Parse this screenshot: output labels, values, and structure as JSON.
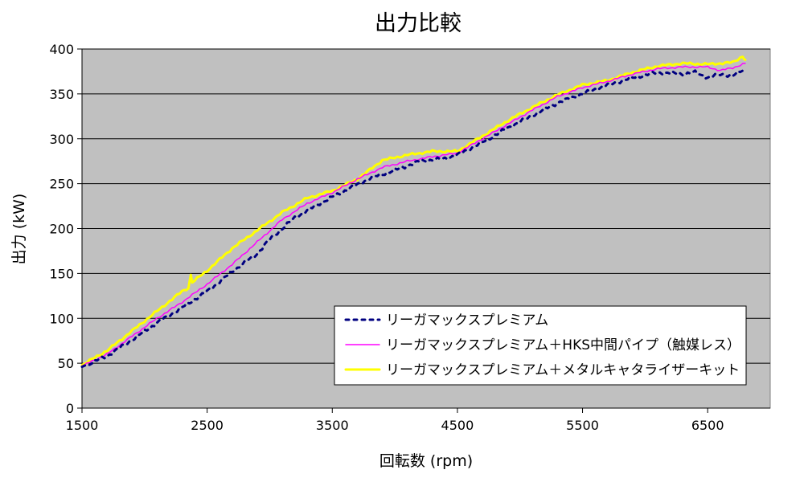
{
  "chart_data": {
    "type": "line",
    "title": "出力比較",
    "xlabel": "回転数 (rpm)",
    "ylabel": "出力 (kW)",
    "xlim": [
      1500,
      7000
    ],
    "ylim": [
      0,
      400
    ],
    "x_ticks": [
      1500,
      2500,
      3500,
      4500,
      5500,
      6500
    ],
    "y_ticks": [
      0,
      50,
      100,
      150,
      200,
      250,
      300,
      350,
      400
    ],
    "grid": "horizontal",
    "legend_position": "bottom-right",
    "plot_background": "#C0C0C0",
    "series": [
      {
        "name": "リーガマックスプレミアム",
        "color": "#000080",
        "style": "dotted",
        "points": [
          [
            1500,
            46
          ],
          [
            1700,
            58
          ],
          [
            1900,
            76
          ],
          [
            2100,
            95
          ],
          [
            2300,
            112
          ],
          [
            2500,
            130
          ],
          [
            2700,
            152
          ],
          [
            2900,
            172
          ],
          [
            3000,
            188
          ],
          [
            3200,
            212
          ],
          [
            3400,
            228
          ],
          [
            3600,
            242
          ],
          [
            3800,
            256
          ],
          [
            4000,
            265
          ],
          [
            4200,
            275
          ],
          [
            4400,
            278
          ],
          [
            4500,
            282
          ],
          [
            4700,
            296
          ],
          [
            4900,
            312
          ],
          [
            5100,
            326
          ],
          [
            5300,
            340
          ],
          [
            5500,
            350
          ],
          [
            5700,
            360
          ],
          [
            5900,
            368
          ],
          [
            6100,
            374
          ],
          [
            6300,
            372
          ],
          [
            6400,
            374
          ],
          [
            6500,
            368
          ],
          [
            6600,
            372
          ],
          [
            6700,
            370
          ],
          [
            6800,
            378
          ]
        ]
      },
      {
        "name": "リーガマックスプレミアム＋HKS中間パイプ（触媒レス）",
        "color": "#FF00FF",
        "style": "solid",
        "points": [
          [
            1500,
            47
          ],
          [
            1700,
            60
          ],
          [
            1900,
            80
          ],
          [
            2100,
            100
          ],
          [
            2300,
            118
          ],
          [
            2500,
            138
          ],
          [
            2700,
            160
          ],
          [
            2900,
            185
          ],
          [
            3100,
            210
          ],
          [
            3300,
            228
          ],
          [
            3500,
            240
          ],
          [
            3700,
            255
          ],
          [
            3900,
            268
          ],
          [
            4100,
            275
          ],
          [
            4300,
            280
          ],
          [
            4500,
            284
          ],
          [
            4700,
            300
          ],
          [
            4900,
            316
          ],
          [
            5100,
            332
          ],
          [
            5300,
            347
          ],
          [
            5500,
            357
          ],
          [
            5700,
            364
          ],
          [
            5900,
            372
          ],
          [
            6100,
            378
          ],
          [
            6300,
            380
          ],
          [
            6500,
            380
          ],
          [
            6600,
            376
          ],
          [
            6700,
            379
          ],
          [
            6800,
            384
          ]
        ]
      },
      {
        "name": "リーガマックスプレミアム＋メタルキャタライザーキット",
        "color": "#FFFF00",
        "style": "solid",
        "points": [
          [
            1500,
            48
          ],
          [
            1700,
            64
          ],
          [
            1900,
            86
          ],
          [
            2100,
            108
          ],
          [
            2300,
            130
          ],
          [
            2350,
            134
          ],
          [
            2370,
            148
          ],
          [
            2380,
            140
          ],
          [
            2500,
            153
          ],
          [
            2700,
            178
          ],
          [
            2900,
            198
          ],
          [
            3100,
            218
          ],
          [
            3300,
            234
          ],
          [
            3500,
            242
          ],
          [
            3700,
            255
          ],
          [
            3900,
            276
          ],
          [
            4100,
            282
          ],
          [
            4300,
            286
          ],
          [
            4500,
            286
          ],
          [
            4700,
            303
          ],
          [
            4900,
            320
          ],
          [
            5100,
            335
          ],
          [
            5300,
            349
          ],
          [
            5500,
            360
          ],
          [
            5700,
            365
          ],
          [
            5900,
            374
          ],
          [
            6100,
            381
          ],
          [
            6300,
            384
          ],
          [
            6500,
            383
          ],
          [
            6700,
            385
          ],
          [
            6780,
            392
          ],
          [
            6800,
            388
          ]
        ]
      }
    ]
  }
}
